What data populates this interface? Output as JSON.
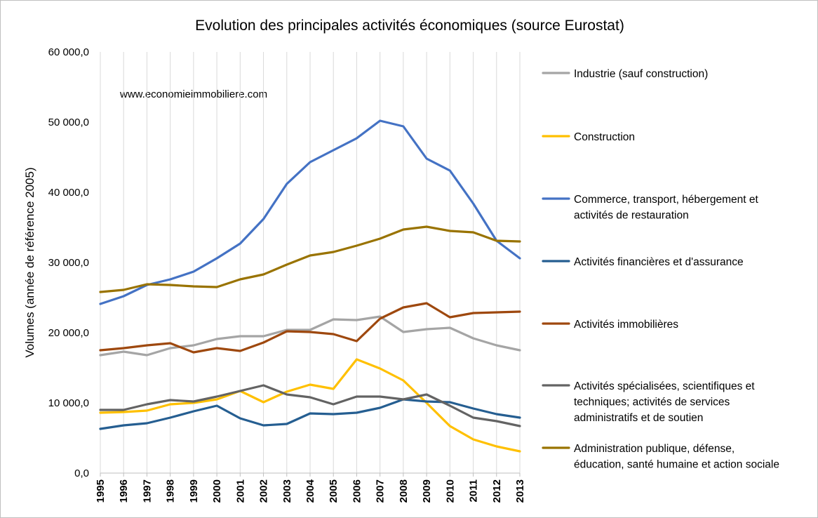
{
  "chart_data": {
    "type": "line",
    "title": "Evolution des principales activités économiques (source Eurostat)",
    "ylabel": "Volumes (année de référence 2005)",
    "xlabel": "",
    "watermark": "www.economieimmobiliere.com",
    "ylim": [
      0,
      60000
    ],
    "y_ticks": [
      0,
      10000,
      20000,
      30000,
      40000,
      50000,
      60000
    ],
    "y_tick_labels": [
      "0,0",
      "10 000,0",
      "20 000,0",
      "30 000,0",
      "40 000,0",
      "50 000,0",
      "60 000,0"
    ],
    "grid": "vertical lines at each year",
    "legend_position": "right",
    "x": [
      "1995",
      "1996",
      "1997",
      "1998",
      "1999",
      "2000",
      "2001",
      "2002",
      "2003",
      "2004",
      "2005",
      "2006",
      "2007",
      "2008",
      "2009",
      "2010",
      "2011",
      "2012",
      "2013"
    ],
    "series": [
      {
        "name": "Industrie (sauf construction)",
        "legend_lines": [
          "Industrie (sauf construction)"
        ],
        "color": "#a5a5a5",
        "values": [
          16800,
          17300,
          16800,
          17800,
          18200,
          19100,
          19500,
          19500,
          20400,
          20400,
          21900,
          21800,
          22300,
          20100,
          20500,
          20700,
          19200,
          18200,
          17500
        ]
      },
      {
        "name": "Construction",
        "legend_lines": [
          "Construction"
        ],
        "color": "#ffc000",
        "values": [
          8600,
          8700,
          8900,
          9800,
          10000,
          10500,
          11700,
          10100,
          11600,
          12600,
          12000,
          16200,
          14900,
          13200,
          10000,
          6700,
          4800,
          3800,
          3100
        ]
      },
      {
        "name": "Commerce, transport, hébergement et activités de restauration",
        "legend_lines": [
          "Commerce, transport, hébergement et",
          "activités de restauration"
        ],
        "color": "#4472c4",
        "values": [
          24100,
          25200,
          26800,
          27600,
          28700,
          30600,
          32700,
          36200,
          41200,
          44300,
          46000,
          47700,
          50200,
          49400,
          44800,
          43100,
          38400,
          33100,
          30600
        ]
      },
      {
        "name": "Activités financières et d'assurance",
        "legend_lines": [
          "Activités financières et d'assurance"
        ],
        "color": "#255e91",
        "values": [
          6300,
          6800,
          7100,
          7900,
          8800,
          9600,
          7800,
          6800,
          7000,
          8500,
          8400,
          8600,
          9300,
          10500,
          10200,
          10100,
          9200,
          8400,
          7900
        ]
      },
      {
        "name": "Activités immobilières",
        "legend_lines": [
          "Activités immobilières"
        ],
        "color": "#9e480e",
        "values": [
          17500,
          17800,
          18200,
          18500,
          17200,
          17800,
          17400,
          18600,
          20200,
          20100,
          19800,
          18800,
          22000,
          23600,
          24200,
          22200,
          22800,
          22900,
          23000
        ]
      },
      {
        "name": "Activités spécialisées, scientifiques et techniques; activités de services administratifs et de soutien",
        "legend_lines": [
          "Activités spécialisées, scientifiques et",
          "techniques; activités de services",
          "administratifs et de soutien"
        ],
        "color": "#636363",
        "values": [
          9000,
          9000,
          9800,
          10400,
          10200,
          10900,
          11700,
          12500,
          11200,
          10800,
          9800,
          10900,
          10900,
          10500,
          11200,
          9600,
          7900,
          7400,
          6700
        ]
      },
      {
        "name": "Administration publique, défense, éducation, santé humaine et action sociale",
        "legend_lines": [
          "Administration publique, défense,",
          "éducation, santé humaine et action sociale"
        ],
        "color": "#997300",
        "values": [
          25800,
          26100,
          26900,
          26800,
          26600,
          26500,
          27600,
          28300,
          29700,
          31000,
          31500,
          32400,
          33400,
          34700,
          35100,
          34500,
          34300,
          33100,
          33000
        ]
      }
    ]
  }
}
